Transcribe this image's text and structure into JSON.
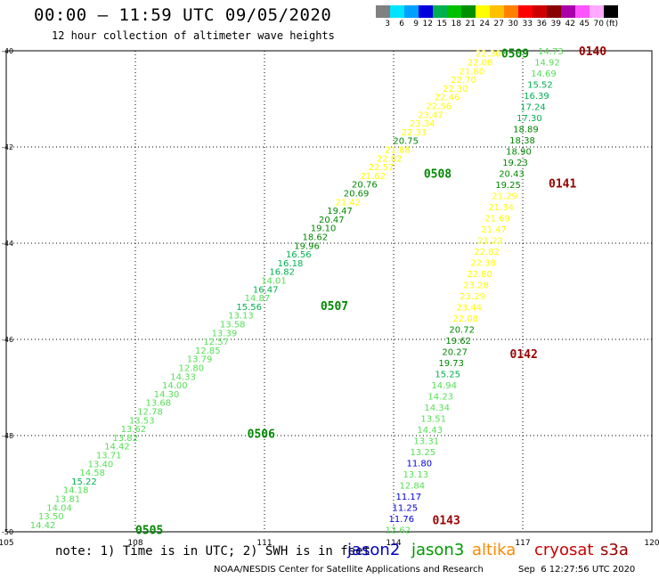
{
  "header": {
    "title": "00:00 – 11:59 UTC 09/05/2020",
    "subtitle": "12 hour collection of altimeter wave heights"
  },
  "legend": {
    "levels": [
      "3",
      "6",
      "9",
      "12",
      "15",
      "18",
      "21",
      "24",
      "27",
      "30",
      "33",
      "36",
      "39",
      "42",
      "45",
      "70",
      "(ft)"
    ],
    "colors": [
      "#808080",
      "#00e5ff",
      "#00a0ff",
      "#0000dd",
      "#00b050",
      "#00c000",
      "#009000",
      "#ffff00",
      "#ffc000",
      "#ff8000",
      "#ff0000",
      "#cc0000",
      "#880000",
      "#aa00aa",
      "#ff55ff",
      "#ffaaff",
      "#000000"
    ]
  },
  "footer": {
    "note": "note: 1) Time is in UTC; 2) SWH is in feet",
    "satellites": [
      {
        "name": "jason2",
        "color": "#0000cc"
      },
      {
        "name": "jason3",
        "color": "#009900"
      },
      {
        "name": "altika",
        "color": "#ff8800"
      },
      {
        "name": "cryosat",
        "color": "#cc0000"
      },
      {
        "name": "s3a",
        "color": "#990000"
      }
    ],
    "credit": "NOAA/NESDIS Center for Satellite Applications and Research",
    "stamp": "Sep  6 12:27:56 UTC 2020"
  },
  "chart_data": {
    "type": "scatter",
    "xlim": [
      105,
      120
    ],
    "ylim": [
      -50,
      -40
    ],
    "x_ticks": [
      "105",
      "108",
      "111",
      "114",
      "117",
      "120"
    ],
    "y_ticks": [
      "-40",
      "-42",
      "-44",
      "-46",
      "-48",
      "-50"
    ],
    "grid": true,
    "time_labels": [
      {
        "text": "0505",
        "x": 108.0,
        "y": -49.95,
        "color": "#008800"
      },
      {
        "text": "0506",
        "x": 110.6,
        "y": -47.95,
        "color": "#008800"
      },
      {
        "text": "0507",
        "x": 112.3,
        "y": -45.3,
        "color": "#008800"
      },
      {
        "text": "0508",
        "x": 114.7,
        "y": -42.55,
        "color": "#008800"
      },
      {
        "text": "0509",
        "x": 116.5,
        "y": -40.05,
        "color": "#008800"
      },
      {
        "text": "0140",
        "x": 118.3,
        "y": -40.0,
        "color": "#990000"
      },
      {
        "text": "0141",
        "x": 117.6,
        "y": -42.75,
        "color": "#990000"
      },
      {
        "text": "0142",
        "x": 116.7,
        "y": -46.3,
        "color": "#990000"
      },
      {
        "text": "0143",
        "x": 114.9,
        "y": -49.75,
        "color": "#990000"
      }
    ],
    "series": [
      {
        "name": "track-0505-0509",
        "start": [
          105.85,
          -49.85
        ],
        "end": [
          116.2,
          -40.05
        ],
        "values": [
          14.42,
          13.5,
          14.04,
          13.81,
          14.18,
          15.22,
          14.58,
          13.4,
          13.71,
          14.42,
          13.82,
          13.62,
          13.53,
          12.78,
          13.68,
          14.3,
          14.0,
          14.33,
          12.8,
          13.79,
          12.85,
          12.57,
          13.39,
          13.58,
          13.13,
          15.56,
          14.87,
          16.47,
          14.01,
          16.82,
          16.18,
          16.56,
          19.96,
          18.62,
          19.1,
          20.47,
          19.47,
          21.42,
          20.69,
          20.76,
          21.62,
          22.57,
          22.02,
          21.88,
          20.75,
          22.33,
          23.34,
          23.47,
          22.56,
          22.46,
          22.3,
          22.7,
          21.6,
          22.08,
          22.3
        ]
      },
      {
        "name": "track-0140-0143",
        "start": [
          114.1,
          -49.95
        ],
        "end": [
          117.65,
          -40.0
        ],
        "values": [
          12.62,
          11.76,
          11.25,
          11.17,
          12.84,
          13.13,
          11.8,
          13.25,
          13.31,
          14.43,
          13.51,
          14.34,
          14.23,
          14.94,
          15.25,
          19.73,
          20.27,
          19.62,
          20.72,
          22.08,
          23.44,
          23.29,
          23.28,
          22.8,
          22.38,
          22.82,
          21.22,
          21.47,
          21.69,
          21.34,
          21.29,
          19.25,
          20.43,
          19.23,
          18.9,
          18.38,
          18.89,
          17.3,
          17.24,
          16.39,
          15.52,
          14.69,
          14.92,
          14.73
        ]
      }
    ]
  }
}
